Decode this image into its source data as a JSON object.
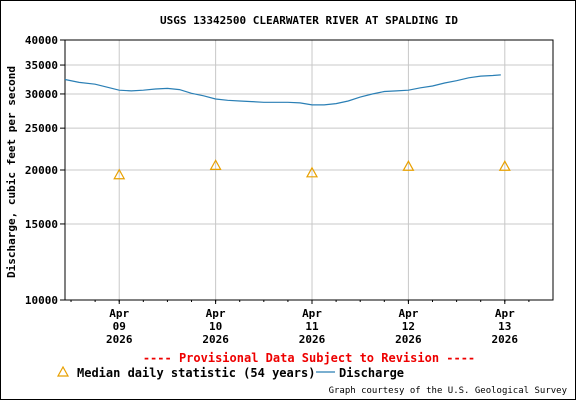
{
  "chart_data": {
    "type": "line",
    "title": "USGS 13342500 CLEARWATER RIVER AT SPALDING ID",
    "ylabel": "Discharge, cubic feet per second",
    "xlabel": "",
    "y_scale": "log",
    "ylim": [
      10000,
      40000
    ],
    "y_ticks": [
      {
        "value": 10000,
        "label": "10000"
      },
      {
        "value": 15000,
        "label": "15000"
      },
      {
        "value": 20000,
        "label": "20000"
      },
      {
        "value": 25000,
        "label": "25000"
      },
      {
        "value": 30000,
        "label": "30000"
      },
      {
        "value": 35000,
        "label": "35000"
      },
      {
        "value": 40000,
        "label": "40000"
      }
    ],
    "xlim": [
      "2026-04-08 10:30",
      "2026-04-13 12:00"
    ],
    "x_ticks": [
      {
        "value": "2026-04-09 00:00",
        "label": [
          "Apr",
          "09",
          "2026"
        ]
      },
      {
        "value": "2026-04-10 00:00",
        "label": [
          "Apr",
          "10",
          "2026"
        ]
      },
      {
        "value": "2026-04-11 00:00",
        "label": [
          "Apr",
          "11",
          "2026"
        ]
      },
      {
        "value": "2026-04-12 00:00",
        "label": [
          "Apr",
          "12",
          "2026"
        ]
      },
      {
        "value": "2026-04-13 00:00",
        "label": [
          "Apr",
          "13",
          "2026"
        ]
      }
    ],
    "grid": true,
    "series": [
      {
        "name": "Discharge",
        "color": "#2a7fb5",
        "style": "line",
        "points": [
          [
            "2026-04-08 10:30",
            32400
          ],
          [
            "2026-04-08 14:00",
            31900
          ],
          [
            "2026-04-08 18:00",
            31600
          ],
          [
            "2026-04-08 21:00",
            31100
          ],
          [
            "2026-04-09 00:00",
            30600
          ],
          [
            "2026-04-09 03:00",
            30500
          ],
          [
            "2026-04-09 06:00",
            30600
          ],
          [
            "2026-04-09 09:00",
            30800
          ],
          [
            "2026-04-09 12:00",
            30900
          ],
          [
            "2026-04-09 15:00",
            30700
          ],
          [
            "2026-04-09 18:00",
            30100
          ],
          [
            "2026-04-09 21:00",
            29700
          ],
          [
            "2026-04-10 00:00",
            29200
          ],
          [
            "2026-04-10 03:00",
            29000
          ],
          [
            "2026-04-10 06:00",
            28900
          ],
          [
            "2026-04-10 09:00",
            28800
          ],
          [
            "2026-04-10 12:00",
            28700
          ],
          [
            "2026-04-10 15:00",
            28700
          ],
          [
            "2026-04-10 18:00",
            28700
          ],
          [
            "2026-04-10 21:00",
            28600
          ],
          [
            "2026-04-11 00:00",
            28300
          ],
          [
            "2026-04-11 03:00",
            28300
          ],
          [
            "2026-04-11 06:00",
            28500
          ],
          [
            "2026-04-11 09:00",
            28900
          ],
          [
            "2026-04-11 12:00",
            29500
          ],
          [
            "2026-04-11 15:00",
            30000
          ],
          [
            "2026-04-11 18:00",
            30400
          ],
          [
            "2026-04-11 21:00",
            30500
          ],
          [
            "2026-04-12 00:00",
            30600
          ],
          [
            "2026-04-12 03:00",
            31000
          ],
          [
            "2026-04-12 06:00",
            31300
          ],
          [
            "2026-04-12 09:00",
            31800
          ],
          [
            "2026-04-12 12:00",
            32200
          ],
          [
            "2026-04-12 15:00",
            32700
          ],
          [
            "2026-04-12 18:00",
            33000
          ],
          [
            "2026-04-12 21:00",
            33100
          ],
          [
            "2026-04-12 23:00",
            33200
          ]
        ]
      },
      {
        "name": "Median daily statistic (54 years)",
        "color": "#e8a000",
        "style": "triangle-marker",
        "points": [
          [
            "2026-04-09 00:00",
            19500
          ],
          [
            "2026-04-10 00:00",
            20500
          ],
          [
            "2026-04-11 00:00",
            19700
          ],
          [
            "2026-04-12 00:00",
            20400
          ],
          [
            "2026-04-13 00:00",
            20400
          ]
        ]
      }
    ],
    "legend_position": "bottom-left"
  },
  "provisional_notice": "---- Provisional Data Subject to Revision ----",
  "credit": "Graph courtesy of the U.S. Geological Survey"
}
